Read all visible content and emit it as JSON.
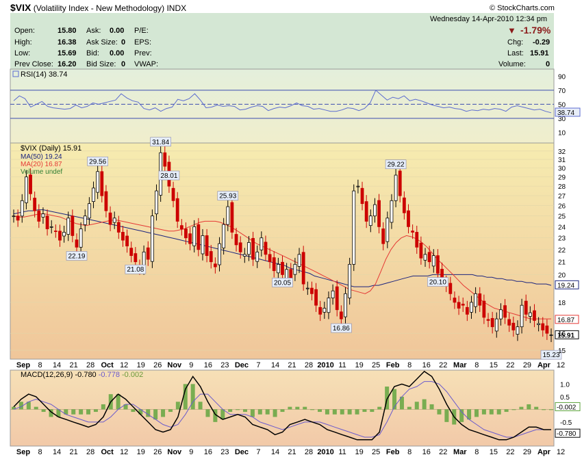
{
  "header": {
    "symbol": "$VIX",
    "name": "(Volatility Index - New Methodology)",
    "exchange": "INDX",
    "brand": "© StockCharts.com",
    "datetime": "Wednesday  14-Apr-2010  12:34 pm"
  },
  "quote": {
    "open_label": "Open:",
    "open": "15.80",
    "high_label": "High:",
    "high": "16.38",
    "low_label": "Low:",
    "low": "15.69",
    "prev_close_label": "Prev Close:",
    "prev_close": "16.20",
    "ask_label": "Ask:",
    "ask": "0.00",
    "ask_size_label": "Ask Size:",
    "ask_size": "0",
    "bid_label": "Bid:",
    "bid": "0.00",
    "bid_size_label": "Bid Size:",
    "bid_size": "0",
    "pe_label": "P/E:",
    "eps_label": "EPS:",
    "prev_label": "Prev:",
    "vwap_label": "VWAP:",
    "change_pct": "-1.79%",
    "chg_label": "Chg:",
    "chg": "-0.29",
    "last_label": "Last:",
    "last": "15.91",
    "volume_label": "Volume:",
    "volume": "0"
  },
  "colors": {
    "down": "#cc0000",
    "ma50": "#1a237e",
    "ma20": "#e53935",
    "macd_line": "#000000",
    "signal_line": "#6a5acd",
    "histogram": "#3a8a2a",
    "rsi": "#5b6bd0"
  },
  "chart_data": [
    {
      "type": "line",
      "title": "RSI(14) 38.74",
      "y_ticks": [
        "90",
        "70",
        "50",
        "30",
        "10"
      ],
      "levels": [
        70,
        50,
        30
      ],
      "last_label": "38.74",
      "series": [
        {
          "name": "RSI(14)",
          "values": [
            55,
            62,
            58,
            46,
            50,
            54,
            47,
            45,
            44,
            43,
            44,
            49,
            45,
            47,
            52,
            50,
            52,
            54,
            56,
            65,
            59,
            55,
            53,
            44,
            42,
            45,
            40,
            44,
            46,
            57,
            55,
            58,
            65,
            56,
            45,
            46,
            49,
            47,
            48,
            47,
            42,
            43,
            46,
            48,
            47,
            41,
            44,
            46,
            45,
            48,
            52,
            48,
            47,
            43,
            44,
            42,
            40,
            40,
            42,
            45,
            44,
            41,
            44,
            52,
            70,
            63,
            56,
            60,
            58,
            62,
            55,
            57,
            55,
            52,
            49,
            47,
            45,
            46,
            44,
            43,
            40,
            42,
            41,
            43,
            42,
            44,
            43,
            40,
            46,
            48,
            46,
            44,
            42,
            43,
            40,
            38
          ]
        }
      ]
    },
    {
      "type": "candlestick",
      "title": "$VIX (Daily) 15.91",
      "legend": [
        "MA(50) 19.24",
        "MA(20) 16.87",
        "Volume undef"
      ],
      "ylim": [
        14.5,
        33
      ],
      "y_ticks": [
        32,
        31,
        30,
        29,
        28,
        27,
        26,
        25,
        24,
        23,
        22,
        21,
        20,
        18,
        16,
        15
      ],
      "x_labels": [
        "Sep",
        "8",
        "14",
        "21",
        "28",
        "Oct",
        "12",
        "19",
        "26",
        "Nov",
        "9",
        "16",
        "23",
        "Dec",
        "7",
        "14",
        "21",
        "28",
        "2010",
        "11",
        "19",
        "25",
        "Feb",
        "8",
        "16",
        "22",
        "Mar",
        "8",
        "15",
        "22",
        "29",
        "Apr",
        "12"
      ],
      "annotations": [
        {
          "text": "29.56",
          "value": 29.56
        },
        {
          "text": "31.84",
          "value": 31.84
        },
        {
          "text": "22.19",
          "value": 22.19
        },
        {
          "text": "20.10",
          "value": 20.1
        },
        {
          "text": "25.93",
          "value": 25.93
        },
        {
          "text": "20.05",
          "value": 20.05
        },
        {
          "text": "16.86",
          "value": 16.86
        },
        {
          "text": "28.01",
          "value": 28.01
        },
        {
          "text": "29.22",
          "value": 29.22
        },
        {
          "text": "21.08",
          "value": 21.08
        },
        {
          "text": "15.23",
          "value": 15.23
        }
      ],
      "right_labels": [
        {
          "text": "19.24",
          "value": 19.24
        },
        {
          "text": "16.87",
          "value": 16.87
        },
        {
          "text": "15.91",
          "value": 15.91
        }
      ],
      "close": [
        25.0,
        24.6,
        26.5,
        29.0,
        27.2,
        25.5,
        24.5,
        25.2,
        23.8,
        24.0,
        23.6,
        22.8,
        23.5,
        24.8,
        23.2,
        22.2,
        23.8,
        25.0,
        26.2,
        27.8,
        29.6,
        27.0,
        25.5,
        24.2,
        24.8,
        23.5,
        22.8,
        22.3,
        21.5,
        21.0,
        20.5,
        21.8,
        21.2,
        25.0,
        27.5,
        31.8,
        30.2,
        28.0,
        26.5,
        24.5,
        23.8,
        23.0,
        22.5,
        24.0,
        22.0,
        23.2,
        21.5,
        21.0,
        20.6,
        22.5,
        24.2,
        25.9,
        23.5,
        22.4,
        21.8,
        21.6,
        22.6,
        21.2,
        21.8,
        23.0,
        21.6,
        21.0,
        20.3,
        20.8,
        20.0,
        20.4,
        19.7,
        20.8,
        21.6,
        19.3,
        19.0,
        18.6,
        17.8,
        17.2,
        17.6,
        18.3,
        18.8,
        17.5,
        16.9,
        18.6,
        20.8,
        27.5,
        28.0,
        26.2,
        24.5,
        25.0,
        26.1,
        24.0,
        22.5,
        24.8,
        26.5,
        29.2,
        27.0,
        25.3,
        24.0,
        23.5,
        22.2,
        21.3,
        21.6,
        21.0,
        21.5,
        20.1,
        19.6,
        19.2,
        18.6,
        18.0,
        17.6,
        17.8,
        17.2,
        18.0,
        18.6,
        17.8,
        17.0,
        16.8,
        16.4,
        16.9,
        17.5,
        17.0,
        16.5,
        16.2,
        16.4,
        17.8,
        17.2,
        17.3,
        16.8,
        16.6,
        16.2,
        16.0,
        15.9
      ],
      "ma50": [
        25.2,
        25.3,
        25.4,
        25.5,
        25.5,
        25.6,
        25.6,
        25.5,
        25.4,
        25.3,
        25.2,
        25.1,
        25.0,
        24.9,
        24.8,
        24.7,
        24.6,
        24.5,
        24.4,
        24.3,
        24.2,
        24.1,
        24.0,
        23.9,
        23.8,
        23.7,
        23.6,
        23.5,
        23.4,
        23.3,
        23.2,
        23.1,
        23.0,
        22.9,
        22.8,
        22.7,
        22.6,
        22.5,
        22.4,
        22.3,
        22.2,
        22.1,
        22.0,
        21.9,
        21.8,
        21.7,
        21.6,
        21.5,
        21.4,
        21.3,
        21.2,
        21.1,
        21.0,
        20.9,
        20.8,
        20.7,
        20.5,
        20.4,
        20.3,
        20.2,
        20.1,
        19.9,
        19.8,
        19.7,
        19.6,
        19.5,
        19.4,
        19.3,
        19.2,
        19.1,
        19.1,
        19.1,
        19.1,
        19.2,
        19.2,
        19.3,
        19.4,
        19.5,
        19.6,
        19.7,
        19.8,
        19.9,
        19.9,
        19.9,
        19.9,
        20.0,
        20.0,
        20.0,
        20.0,
        20.0,
        20.0,
        20.0,
        20.0,
        20.0,
        19.9,
        19.9,
        19.8,
        19.8,
        19.7,
        19.7,
        19.6,
        19.6,
        19.5,
        19.5,
        19.4,
        19.4,
        19.3,
        19.3,
        19.3,
        19.2
      ],
      "ma20": [
        25.0,
        24.9,
        24.9,
        25.0,
        25.1,
        25.2,
        25.2,
        25.1,
        25.0,
        24.9,
        24.7,
        24.5,
        24.3,
        24.2,
        24.1,
        24.2,
        24.3,
        24.4,
        24.5,
        24.6,
        24.6,
        24.5,
        24.4,
        24.3,
        24.2,
        24.1,
        24.0,
        23.9,
        23.8,
        23.7,
        23.6,
        23.6,
        23.7,
        23.8,
        24.0,
        24.2,
        24.4,
        24.5,
        24.5,
        24.5,
        24.4,
        24.2,
        24.0,
        23.7,
        23.4,
        23.1,
        22.8,
        22.5,
        22.3,
        22.1,
        21.9,
        21.7,
        21.5,
        21.3,
        21.1,
        20.9,
        20.7,
        20.5,
        20.3,
        20.1,
        19.9,
        19.7,
        19.5,
        19.3,
        19.1,
        18.9,
        18.8,
        18.7,
        18.6,
        18.8,
        19.3,
        20.2,
        21.2,
        22.0,
        22.6,
        23.0,
        23.2,
        23.1,
        22.9,
        22.6,
        22.2,
        21.7,
        21.2,
        20.8,
        20.4,
        20.0,
        19.6,
        19.2,
        18.9,
        18.6,
        18.3,
        18.0,
        17.8,
        17.6,
        17.5,
        17.4,
        17.3,
        17.2,
        17.1,
        17.0,
        16.9,
        16.9,
        16.9,
        16.9,
        16.9
      ]
    },
    {
      "type": "line",
      "title": "MACD(12,26,9)",
      "legend_values": {
        "macd": "-0.780",
        "signal": "-0.778",
        "histogram": "-0.002"
      },
      "y_ticks": [
        "1.0",
        "0.5",
        "-0.5",
        "-1.0"
      ],
      "right_labels": [
        {
          "text": "-0.002",
          "value": -0.002
        },
        {
          "text": "-0.780",
          "value": -0.78
        }
      ],
      "series": [
        {
          "name": "MACD",
          "values": [
            0.1,
            0.4,
            0.6,
            0.5,
            0.2,
            -0.1,
            -0.3,
            -0.4,
            -0.5,
            -0.6,
            -0.7,
            -0.6,
            -0.3,
            0.3,
            0.6,
            0.4,
            0.1,
            -0.2,
            -0.5,
            -0.8,
            -0.9,
            -0.8,
            -0.3,
            0.8,
            1.3,
            0.9,
            0.3,
            -0.2,
            -0.4,
            -0.3,
            -0.2,
            -0.3,
            -0.6,
            -0.7,
            -0.8,
            -1.0,
            -0.9,
            -0.6,
            -0.5,
            -0.4,
            -0.5,
            -0.6,
            -0.8,
            -0.9,
            -1.0,
            -1.1,
            -1.2,
            -1.2,
            -1.2,
            -0.9,
            0.4,
            0.9,
            1.0,
            0.9,
            1.2,
            1.5,
            1.3,
            0.8,
            0.2,
            -0.3,
            -0.6,
            -0.8,
            -0.9,
            -1.0,
            -1.1,
            -1.2,
            -1.2,
            -1.1,
            -0.9,
            -0.7,
            -0.7,
            -0.8,
            -0.8
          ]
        },
        {
          "name": "Signal",
          "values": [
            0.0,
            0.1,
            0.3,
            0.4,
            0.3,
            0.2,
            0.0,
            -0.2,
            -0.3,
            -0.4,
            -0.5,
            -0.5,
            -0.5,
            -0.3,
            0.0,
            0.2,
            0.2,
            0.0,
            -0.2,
            -0.4,
            -0.6,
            -0.7,
            -0.6,
            -0.2,
            0.3,
            0.6,
            0.6,
            0.3,
            0.0,
            -0.2,
            -0.2,
            -0.2,
            -0.3,
            -0.5,
            -0.6,
            -0.7,
            -0.8,
            -0.7,
            -0.6,
            -0.5,
            -0.5,
            -0.5,
            -0.6,
            -0.7,
            -0.8,
            -0.9,
            -1.0,
            -1.1,
            -1.1,
            -1.0,
            -0.5,
            0.1,
            0.5,
            0.8,
            0.9,
            1.1,
            1.1,
            1.0,
            0.7,
            0.3,
            -0.1,
            -0.4,
            -0.6,
            -0.8,
            -0.9,
            -1.0,
            -1.1,
            -1.1,
            -1.0,
            -0.9,
            -0.8,
            -0.8,
            -0.8
          ]
        }
      ]
    }
  ]
}
